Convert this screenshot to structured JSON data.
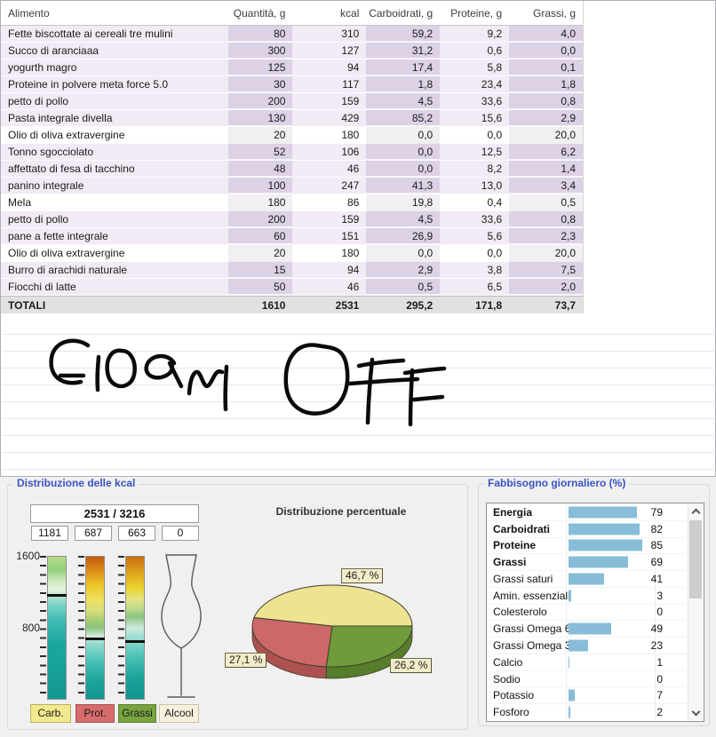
{
  "food_table": {
    "columns": [
      "Alimento",
      "Quantità, g",
      "kcal",
      "Carboidrati, g",
      "Proteine, g",
      "Grassi, g"
    ],
    "rows": [
      {
        "name": "Fette biscottate ai cereali tre mulini",
        "qty": "80",
        "kcal": "310",
        "carb": "59,2",
        "prot": "9,2",
        "fat": "4,0",
        "variant": "purple"
      },
      {
        "name": "Succo di aranciaaa",
        "qty": "300",
        "kcal": "127",
        "carb": "31,2",
        "prot": "0,6",
        "fat": "0,0",
        "variant": "purple"
      },
      {
        "name": "yogurth magro",
        "qty": "125",
        "kcal": "94",
        "carb": "17,4",
        "prot": "5,8",
        "fat": "0,1",
        "variant": "purple"
      },
      {
        "name": "Proteine in polvere meta force 5.0",
        "qty": "30",
        "kcal": "117",
        "carb": "1,8",
        "prot": "23,4",
        "fat": "1,8",
        "variant": "purple"
      },
      {
        "name": "petto di pollo",
        "qty": "200",
        "kcal": "159",
        "carb": "4,5",
        "prot": "33,6",
        "fat": "0,8",
        "variant": "purple"
      },
      {
        "name": "Pasta integrale divella",
        "qty": "130",
        "kcal": "429",
        "carb": "85,2",
        "prot": "15,6",
        "fat": "2,9",
        "variant": "purple"
      },
      {
        "name": "Olio di oliva extravergine",
        "qty": "20",
        "kcal": "180",
        "carb": "0,0",
        "prot": "0,0",
        "fat": "20,0",
        "variant": "white"
      },
      {
        "name": "Tonno sgocciolato",
        "qty": "52",
        "kcal": "106",
        "carb": "0,0",
        "prot": "12,5",
        "fat": "6,2",
        "variant": "purple"
      },
      {
        "name": "affettato di fesa di tacchino",
        "qty": "48",
        "kcal": "46",
        "carb": "0,0",
        "prot": "8,2",
        "fat": "1,4",
        "variant": "purple"
      },
      {
        "name": "panino integrale",
        "qty": "100",
        "kcal": "247",
        "carb": "41,3",
        "prot": "13,0",
        "fat": "3,4",
        "variant": "purple"
      },
      {
        "name": "Mela",
        "qty": "180",
        "kcal": "86",
        "carb": "19,8",
        "prot": "0,4",
        "fat": "0,5",
        "variant": "white"
      },
      {
        "name": "petto di pollo",
        "qty": "200",
        "kcal": "159",
        "carb": "4,5",
        "prot": "33,6",
        "fat": "0,8",
        "variant": "purple"
      },
      {
        "name": "pane  a fette integrale",
        "qty": "60",
        "kcal": "151",
        "carb": "26,9",
        "prot": "5,6",
        "fat": "2,3",
        "variant": "purple"
      },
      {
        "name": "Olio di oliva extravergine",
        "qty": "20",
        "kcal": "180",
        "carb": "0,0",
        "prot": "0,0",
        "fat": "20,0",
        "variant": "white"
      },
      {
        "name": "Burro di arachidi naturale",
        "qty": "15",
        "kcal": "94",
        "carb": "2,9",
        "prot": "3,8",
        "fat": "7,5",
        "variant": "purple"
      },
      {
        "name": "Fiocchi di latte",
        "qty": "50",
        "kcal": "46",
        "carb": "0,5",
        "prot": "6,5",
        "fat": "2,0",
        "variant": "purple"
      }
    ],
    "totals": {
      "label": "TOTALI",
      "qty": "1610",
      "kcal": "2531",
      "carb": "295,2",
      "prot": "171,8",
      "fat": "73,7"
    }
  },
  "handwriting_text": "GIORNI OFF",
  "kcal_panel": {
    "title": "Distribuzione delle kcal",
    "total_box": "2531 / 3216",
    "macro_values": [
      "1181",
      "687",
      "663",
      "0"
    ],
    "axis_labels": [
      "1600",
      "800"
    ],
    "scale_max": 1600,
    "gauges": [
      {
        "id": "carb",
        "value": 1181,
        "gradient": [
          "#b8de85 0%",
          "#8fd07c 9%",
          "#cdeabc 17%",
          "#e6f2e0 23%",
          "#7fd4c8 33%",
          "#3fbcb2 45%",
          "#1ca89e 60%",
          "#12988e 100%"
        ]
      },
      {
        "id": "prot",
        "value": 687,
        "gradient": [
          "#c35a0e 0%",
          "#dd8f16 10%",
          "#ecc526 20%",
          "#eee05e 30%",
          "#d9dd7c 38%",
          "#a3cb72 45%",
          "#8ac47e 50%",
          "#d2ecdf 56%",
          "#8ed9cd 62%",
          "#48c0b5 74%",
          "#1aa49a 88%",
          "#11968c 100%"
        ]
      },
      {
        "id": "grassi",
        "value": 663,
        "gradient": [
          "#c96d0e 0%",
          "#e0a81c 12%",
          "#e9d52f 22%",
          "#e4e383 30%",
          "#b9d98c 37%",
          "#8cc480 42%",
          "#cdeadd 50%",
          "#93dccf 58%",
          "#4ec2b8 70%",
          "#1aa49a 85%",
          "#11968c 100%"
        ]
      }
    ],
    "legend": [
      {
        "label": "Carb.",
        "bg": "#f2e98e",
        "border": "#b9b25e"
      },
      {
        "label": "Prot.",
        "bg": "#d86c6c",
        "border": "#a85252"
      },
      {
        "label": "Grassi",
        "bg": "#78a33e",
        "border": "#5d8030"
      },
      {
        "label": "Alcool",
        "bg": "#f7f0dc",
        "border": "#c9c2a9"
      }
    ]
  },
  "pie_panel": {
    "title": "Distribuzione percentuale",
    "labels": [
      "46,7 %",
      "27,1 %",
      "26,2 %"
    ],
    "draw_order": [
      {
        "pct": 26.2,
        "color": "#6f9b3a",
        "side": "#567d2a"
      },
      {
        "pct": 27.1,
        "color": "#cd6868",
        "side": "#ad5151"
      },
      {
        "pct": 46.7,
        "color": "#eee391",
        "side": "#c9bd6a"
      }
    ]
  },
  "requirements_panel": {
    "title": "Fabbisogno giornaliero (%)",
    "items": [
      {
        "label": "Energia",
        "value": 79,
        "bold": true
      },
      {
        "label": "Carboidrati",
        "value": 82,
        "bold": true
      },
      {
        "label": "Proteine",
        "value": 85,
        "bold": true
      },
      {
        "label": "Grassi",
        "value": 69,
        "bold": true
      },
      {
        "label": "Grassi saturi",
        "value": 41,
        "bold": false
      },
      {
        "label": "Amin. essenziali",
        "value": 3,
        "bold": false
      },
      {
        "label": "Colesterolo",
        "value": 0,
        "bold": false
      },
      {
        "label": "Grassi Omega 6",
        "value": 49,
        "bold": false
      },
      {
        "label": "Grassi Omega 3",
        "value": 23,
        "bold": false
      },
      {
        "label": "Calcio",
        "value": 1,
        "bold": false
      },
      {
        "label": "Sodio",
        "value": 0,
        "bold": false
      },
      {
        "label": "Potassio",
        "value": 7,
        "bold": false
      },
      {
        "label": "Fosforo",
        "value": 2,
        "bold": false
      }
    ]
  },
  "chart_data": [
    {
      "type": "pie",
      "title": "Distribuzione percentuale",
      "slices": [
        {
          "label": "Carboidrati",
          "value": 46.7,
          "color": "#eee391"
        },
        {
          "label": "Proteine",
          "value": 27.1,
          "color": "#cd6868"
        },
        {
          "label": "Grassi",
          "value": 26.2,
          "color": "#6f9b3a"
        }
      ]
    },
    {
      "type": "bar",
      "title": "Fabbisogno giornaliero (%)",
      "categories": [
        "Energia",
        "Carboidrati",
        "Proteine",
        "Grassi",
        "Grassi saturi",
        "Amin. essenziali",
        "Colesterolo",
        "Grassi Omega 6",
        "Grassi Omega 3",
        "Calcio",
        "Sodio",
        "Potassio",
        "Fosforo"
      ],
      "values": [
        79,
        82,
        85,
        69,
        41,
        3,
        0,
        49,
        23,
        1,
        0,
        7,
        2
      ],
      "xlim": [
        0,
        100
      ],
      "bar_color": "#87bdd8",
      "legend_position": "none"
    },
    {
      "type": "gauge",
      "title": "Distribuzione delle kcal",
      "total_label": "2531 / 3216",
      "values": {
        "carboidrati": 1181,
        "proteine": 687,
        "grassi": 663,
        "alcool": 0
      },
      "scale": [
        0,
        1600
      ],
      "axis_ticks_every": 100
    }
  ]
}
